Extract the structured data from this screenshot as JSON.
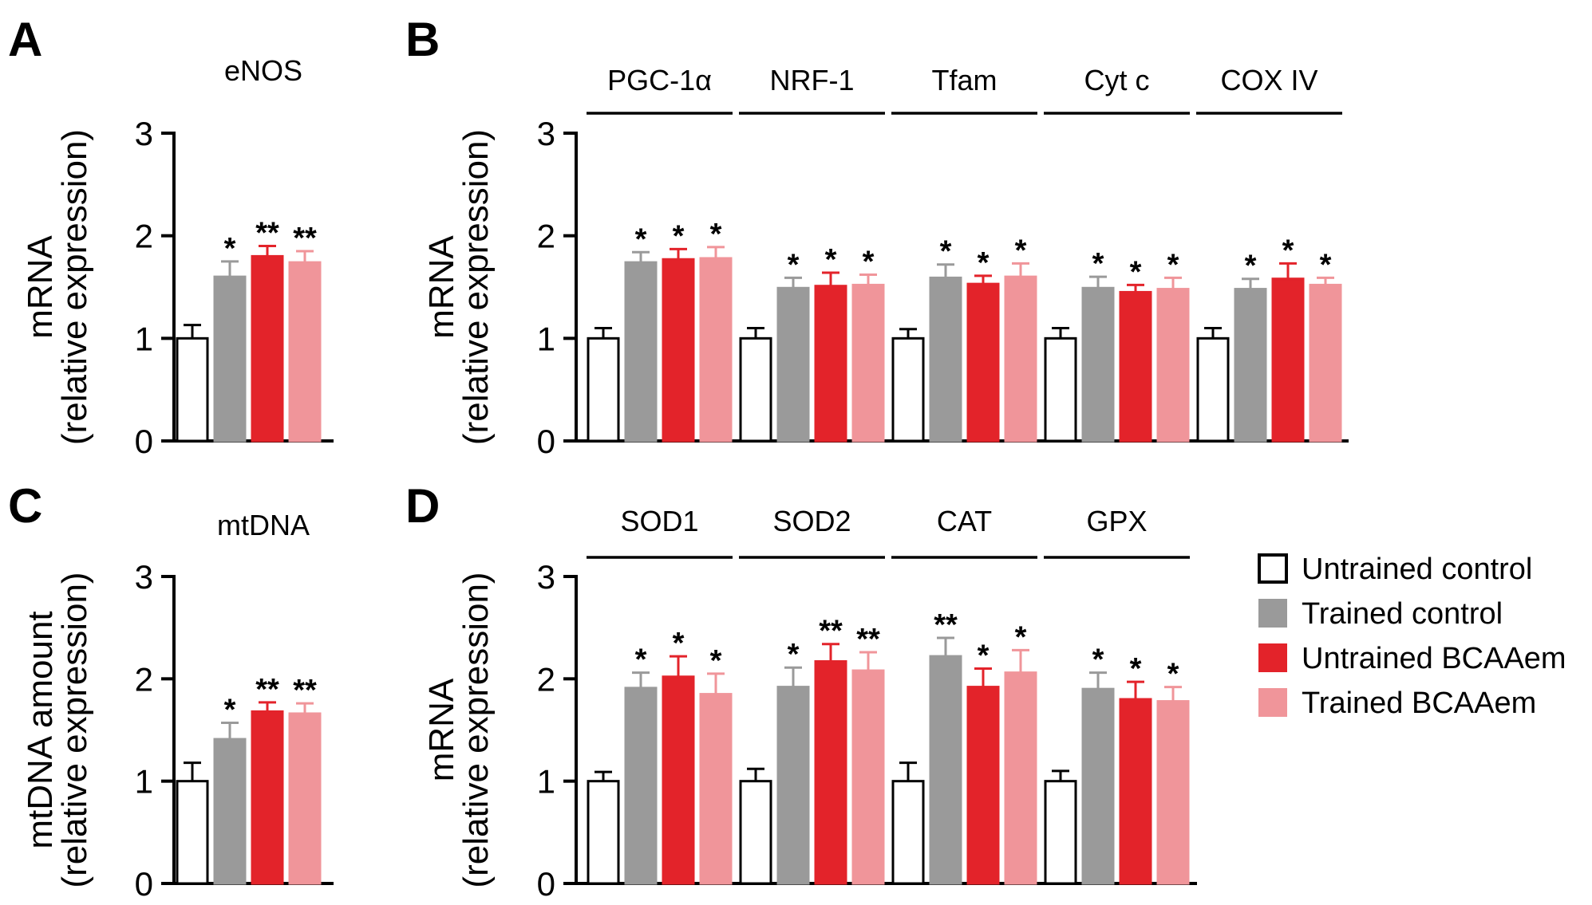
{
  "colors": {
    "untrained_control": "#ffffff",
    "trained_control": "#9a9a9a",
    "untrained_bcaaem": "#e3232a",
    "trained_bcaaem": "#f0959a"
  },
  "legend": [
    {
      "label": "Untrained control",
      "color": "#ffffff"
    },
    {
      "label": "Trained control",
      "color": "#9a9a9a"
    },
    {
      "label": "Untrained BCAAem",
      "color": "#e3232a"
    },
    {
      "label": "Trained BCAAem",
      "color": "#f0959a"
    }
  ],
  "chart_data": [
    {
      "panel": "A",
      "type": "bar",
      "title": "eNOS",
      "ylabel": "mRNA",
      "ylabel2": "(relative expression)",
      "ylim": [
        0,
        3
      ],
      "yticks": [
        "0",
        "1",
        "2",
        "3"
      ],
      "groups": [
        {
          "name": "eNOS",
          "values": [
            1.0,
            1.6,
            1.8,
            1.74
          ],
          "errors": [
            0.13,
            0.15,
            0.1,
            0.11
          ],
          "stars": [
            "",
            "*",
            "**",
            "**"
          ]
        }
      ]
    },
    {
      "panel": "B",
      "type": "bar",
      "title": "",
      "ylabel": "mRNA",
      "ylabel2": "(relative expression)",
      "ylim": [
        0,
        3
      ],
      "yticks": [
        "0",
        "1",
        "2",
        "3"
      ],
      "groups": [
        {
          "name": "PGC-1α",
          "values": [
            1.0,
            1.74,
            1.77,
            1.78
          ],
          "errors": [
            0.1,
            0.1,
            0.1,
            0.11
          ],
          "stars": [
            "",
            "*",
            "*",
            "*"
          ]
        },
        {
          "name": "NRF-1",
          "values": [
            1.0,
            1.49,
            1.51,
            1.52
          ],
          "errors": [
            0.1,
            0.1,
            0.13,
            0.1
          ],
          "stars": [
            "",
            "*",
            "*",
            "*"
          ]
        },
        {
          "name": "Tfam",
          "values": [
            1.0,
            1.59,
            1.53,
            1.6
          ],
          "errors": [
            0.09,
            0.13,
            0.08,
            0.13
          ],
          "stars": [
            "",
            "*",
            "*",
            "*"
          ]
        },
        {
          "name": "Cyt c",
          "values": [
            1.0,
            1.49,
            1.45,
            1.48
          ],
          "errors": [
            0.1,
            0.11,
            0.07,
            0.11
          ],
          "stars": [
            "",
            "*",
            "*",
            "*"
          ]
        },
        {
          "name": "COX IV",
          "values": [
            1.0,
            1.48,
            1.58,
            1.52
          ],
          "errors": [
            0.1,
            0.1,
            0.15,
            0.07
          ],
          "stars": [
            "",
            "*",
            "*",
            "*"
          ]
        }
      ]
    },
    {
      "panel": "C",
      "type": "bar",
      "title": "mtDNA",
      "ylabel": "mtDNA amount",
      "ylabel2": "(relative expression)",
      "ylim": [
        0,
        3
      ],
      "yticks": [
        "0",
        "1",
        "2",
        "3"
      ],
      "groups": [
        {
          "name": "mtDNA",
          "values": [
            1.0,
            1.41,
            1.68,
            1.66
          ],
          "errors": [
            0.18,
            0.16,
            0.09,
            0.1
          ],
          "stars": [
            "",
            "*",
            "**",
            "**"
          ]
        }
      ]
    },
    {
      "panel": "D",
      "type": "bar",
      "title": "",
      "ylabel": "mRNA",
      "ylabel2": "(relative expression)",
      "ylim": [
        0,
        3
      ],
      "yticks": [
        "0",
        "1",
        "2",
        "3"
      ],
      "groups": [
        {
          "name": "SOD1",
          "values": [
            1.0,
            1.91,
            2.02,
            1.85
          ],
          "errors": [
            0.09,
            0.15,
            0.2,
            0.2
          ],
          "stars": [
            "",
            "*",
            "*",
            "*"
          ]
        },
        {
          "name": "SOD2",
          "values": [
            1.0,
            1.92,
            2.17,
            2.08
          ],
          "errors": [
            0.12,
            0.19,
            0.17,
            0.18
          ],
          "stars": [
            "",
            "*",
            "**",
            "**"
          ]
        },
        {
          "name": "CAT",
          "values": [
            1.0,
            2.22,
            1.92,
            2.06
          ],
          "errors": [
            0.18,
            0.18,
            0.18,
            0.22
          ],
          "stars": [
            "",
            "**",
            "*",
            "*"
          ]
        },
        {
          "name": "GPX",
          "values": [
            1.0,
            1.9,
            1.8,
            1.78
          ],
          "errors": [
            0.1,
            0.16,
            0.17,
            0.14
          ],
          "stars": [
            "",
            "*",
            "*",
            "*"
          ]
        }
      ]
    }
  ]
}
